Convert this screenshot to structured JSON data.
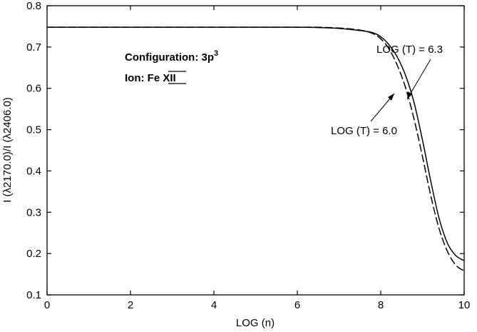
{
  "chart_data": {
    "type": "line",
    "xlabel": "LOG (n)",
    "ylabel": "I (λ2170.0)/I (λ2406.0)",
    "xlim": [
      0,
      10
    ],
    "ylim": [
      0.1,
      0.8
    ],
    "xticks": [
      0,
      2,
      4,
      6,
      8,
      10
    ],
    "xtick_labels": [
      "0",
      "2",
      "4",
      "6",
      "8",
      "10"
    ],
    "yticks": [
      0.1,
      0.2,
      0.3,
      0.4,
      0.5,
      0.6,
      0.7,
      0.8
    ],
    "ytick_labels": [
      "0.1",
      "0.2",
      "0.3",
      "0.4",
      "0.5",
      "0.6",
      "0.7",
      "0.8"
    ],
    "grid": false,
    "series": [
      {
        "name": "LOG (T) = 6.3",
        "style": "solid",
        "x": [
          0,
          2,
          4,
          6,
          6.5,
          7.0,
          7.5,
          7.8,
          8.0,
          8.2,
          8.4,
          8.6,
          8.8,
          9.0,
          9.2,
          9.4,
          9.6,
          9.8,
          10.0
        ],
        "y": [
          0.748,
          0.748,
          0.748,
          0.748,
          0.747,
          0.745,
          0.74,
          0.735,
          0.725,
          0.705,
          0.675,
          0.63,
          0.565,
          0.475,
          0.375,
          0.285,
          0.225,
          0.195,
          0.183
        ]
      },
      {
        "name": "LOG (T) = 6.0",
        "style": "dashed",
        "x": [
          0,
          2,
          4,
          6,
          6.5,
          7.0,
          7.5,
          7.8,
          8.0,
          8.2,
          8.4,
          8.6,
          8.8,
          9.0,
          9.2,
          9.4,
          9.6,
          9.8,
          10.0
        ],
        "y": [
          0.748,
          0.748,
          0.748,
          0.748,
          0.748,
          0.746,
          0.741,
          0.733,
          0.72,
          0.695,
          0.655,
          0.6,
          0.525,
          0.435,
          0.34,
          0.26,
          0.205,
          0.172,
          0.158
        ]
      }
    ],
    "annotations": {
      "config_prefix": "Configuration: 3p",
      "config_sup": "3",
      "ion_prefix": "Ion: Fe ",
      "ion_roman": "XII",
      "label_63": "LOG (T) = 6.3",
      "label_60": "LOG (T) = 6.0"
    }
  }
}
